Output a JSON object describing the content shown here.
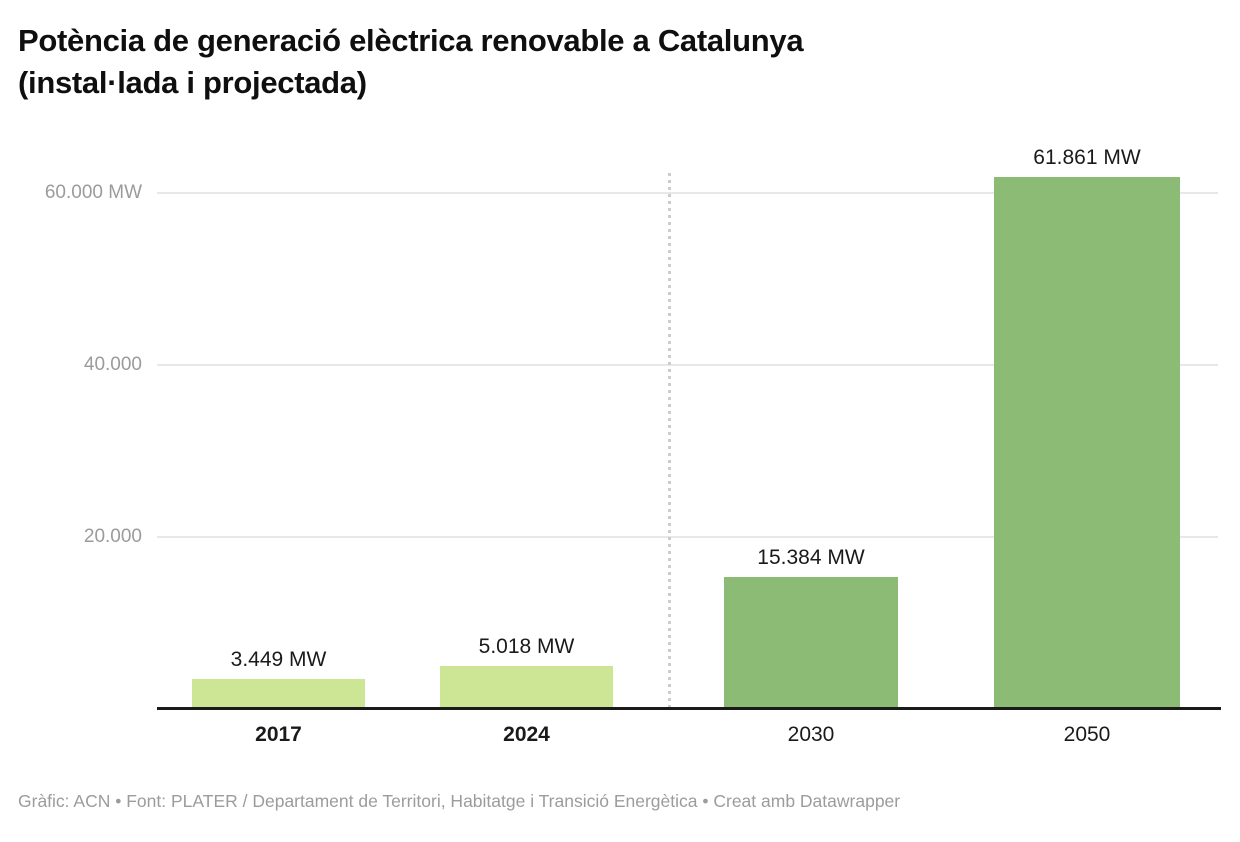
{
  "header": {
    "title_line1": "Potència de generació elèctrica renovable a Catalunya",
    "title_line2": "(instal·lada i projectada)"
  },
  "footer": {
    "text": "Gràfic: ACN • Font: PLATER / Departament de Territori, Habitatge i Transició Energètica • Creat amb Datawrapper"
  },
  "chart_data": {
    "type": "bar",
    "title": "Potència de generació elèctrica renovable a Catalunya (instal·lada i projectada)",
    "categories": [
      "2017",
      "2024",
      "2030",
      "2050"
    ],
    "values": [
      3449,
      5018,
      15384,
      61861
    ],
    "value_labels": [
      "3.449 MW",
      "5.018 MW",
      "15.384 MW",
      "61.861 MW"
    ],
    "unit": "MW",
    "xlabel": "",
    "ylabel": "",
    "ylim": [
      0,
      64000
    ],
    "yticks": [
      {
        "value": 20000,
        "label": "20.000"
      },
      {
        "value": 40000,
        "label": "40.000"
      },
      {
        "value": 60000,
        "label": "60.000 MW"
      }
    ],
    "grid": "horizontal",
    "legend": "none",
    "divider_after_index": 1,
    "bar_colors": [
      "#cde696",
      "#cde696",
      "#8bbb74",
      "#8bbb74"
    ],
    "category_bold": [
      true,
      true,
      false,
      false
    ],
    "colors": {
      "installed_bar": "#cde696",
      "projected_bar": "#8bbb74",
      "grid_line": "#e8e8e8",
      "axis_line": "#1a1a1a",
      "tick_label": "#9b9b9b",
      "value_label": "#1a1a1a",
      "divider": "#cccccc",
      "title": "#0f0f0f",
      "footer": "#9c9c9c"
    }
  }
}
